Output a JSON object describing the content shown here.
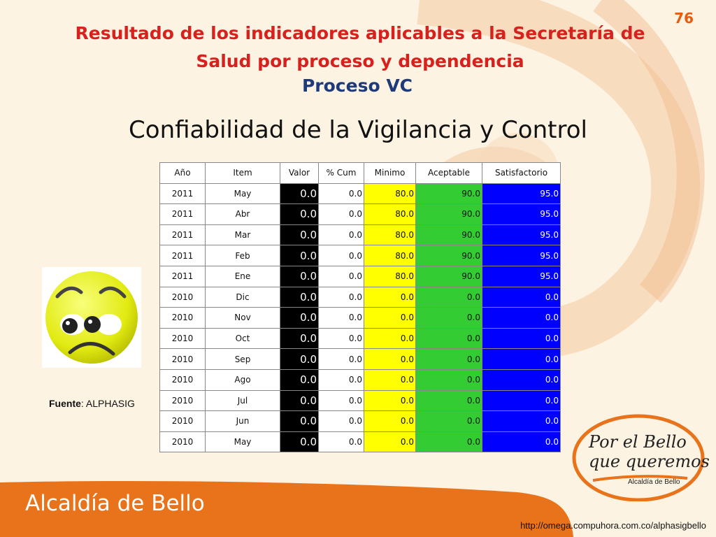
{
  "page_number": "76",
  "title_line1": "Resultado de los indicadores aplicables a la Secretaría de",
  "title_line2": "Salud por proceso y dependencia",
  "process": "Proceso VC",
  "subtitle": "Confiabilidad de la Vigilancia y Control",
  "table": {
    "headers": [
      "Año",
      "Item",
      "Valor",
      "% Cum",
      "Minimo",
      "Aceptable",
      "Satisfactorio"
    ],
    "rows": [
      [
        "2011",
        "May",
        "0.0",
        "0.0",
        "80.0",
        "90.0",
        "95.0"
      ],
      [
        "2011",
        "Abr",
        "0.0",
        "0.0",
        "80.0",
        "90.0",
        "95.0"
      ],
      [
        "2011",
        "Mar",
        "0.0",
        "0.0",
        "80.0",
        "90.0",
        "95.0"
      ],
      [
        "2011",
        "Feb",
        "0.0",
        "0.0",
        "80.0",
        "90.0",
        "95.0"
      ],
      [
        "2011",
        "Ene",
        "0.0",
        "0.0",
        "80.0",
        "90.0",
        "95.0"
      ],
      [
        "2010",
        "Dic",
        "0.0",
        "0.0",
        "0.0",
        "0.0",
        "0.0"
      ],
      [
        "2010",
        "Nov",
        "0.0",
        "0.0",
        "0.0",
        "0.0",
        "0.0"
      ],
      [
        "2010",
        "Oct",
        "0.0",
        "0.0",
        "0.0",
        "0.0",
        "0.0"
      ],
      [
        "2010",
        "Sep",
        "0.0",
        "0.0",
        "0.0",
        "0.0",
        "0.0"
      ],
      [
        "2010",
        "Ago",
        "0.0",
        "0.0",
        "0.0",
        "0.0",
        "0.0"
      ],
      [
        "2010",
        "Jul",
        "0.0",
        "0.0",
        "0.0",
        "0.0",
        "0.0"
      ],
      [
        "2010",
        "Jun",
        "0.0",
        "0.0",
        "0.0",
        "0.0",
        "0.0"
      ],
      [
        "2010",
        "May",
        "0.0",
        "0.0",
        "0.0",
        "0.0",
        "0.0"
      ]
    ]
  },
  "source_label": "Fuente",
  "source_value": ": ALPHASIG",
  "footer_brand": "Alcaldía de Bello",
  "footer_url": "http://omega.compuhora.com.co/alphasigbello",
  "logo": {
    "line1": "Por el Bello",
    "line2": "que queremos",
    "sub": "Alcaldía de Bello"
  },
  "icons": {
    "face": "sad-face-icon"
  },
  "colors": {
    "title": "#d8211d",
    "process": "#1f3a7a",
    "valor_bg": "#000000",
    "minimo_bg": "#ffff00",
    "aceptable_bg": "#33cc33",
    "satisfactorio_bg": "#0000ff",
    "footer": "#e8731a"
  }
}
